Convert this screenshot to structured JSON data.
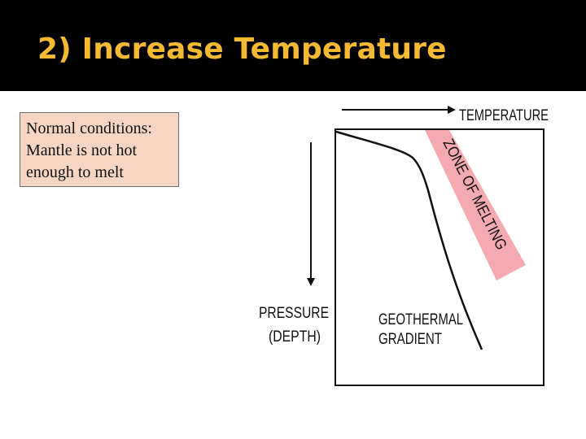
{
  "slide": {
    "title": "2) Increase Temperature"
  },
  "note": {
    "lines": [
      "Normal conditions:",
      "Mantle is not hot",
      "enough to melt"
    ]
  },
  "diagram": {
    "temperature_label": "TEMPERATURE",
    "pressure_label_line1": "PRESSURE",
    "pressure_label_line2": "(DEPTH)",
    "melting_zone_label": "ZONE OF MELTING",
    "geotherm_label_line1": "GEOTHERMAL",
    "geotherm_label_line2": "GRADIENT",
    "colors": {
      "title": "#f5b932",
      "note_background": "#f6d5c2",
      "melting_zone": "#f4aab0"
    }
  }
}
